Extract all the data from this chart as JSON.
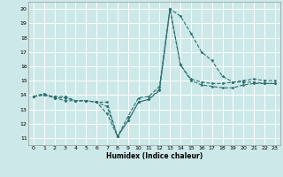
{
  "xlabel": "Humidex (Indice chaleur)",
  "bg_color": "#cce8e8",
  "grid_color": "#ffffff",
  "line_color": "#2d7070",
  "xlim": [
    -0.5,
    23.5
  ],
  "ylim": [
    10.5,
    20.5
  ],
  "yticks": [
    11,
    12,
    13,
    14,
    15,
    16,
    17,
    18,
    19,
    20
  ],
  "xticks": [
    0,
    1,
    2,
    3,
    4,
    5,
    6,
    7,
    8,
    9,
    10,
    11,
    12,
    13,
    14,
    15,
    16,
    17,
    18,
    19,
    20,
    21,
    22,
    23
  ],
  "lines": [
    [
      13.9,
      14.0,
      13.8,
      13.6,
      13.6,
      13.6,
      13.5,
      12.7,
      11.1,
      12.2,
      13.5,
      13.7,
      14.4,
      20.0,
      19.5,
      18.3,
      17.0,
      16.4,
      15.3,
      14.9,
      14.9,
      14.9,
      14.8,
      14.8
    ],
    [
      13.9,
      14.0,
      13.9,
      13.9,
      13.6,
      13.6,
      13.5,
      13.2,
      11.1,
      12.2,
      13.5,
      13.7,
      14.3,
      20.0,
      16.1,
      15.0,
      14.7,
      14.6,
      14.5,
      14.5,
      14.7,
      14.8,
      14.8,
      14.8
    ],
    [
      13.9,
      14.1,
      13.8,
      13.8,
      13.6,
      13.6,
      13.5,
      13.5,
      11.1,
      12.5,
      13.8,
      13.9,
      14.6,
      20.0,
      16.1,
      15.1,
      14.9,
      14.8,
      14.8,
      14.9,
      15.0,
      15.1,
      15.0,
      15.0
    ]
  ],
  "ylabel_ticks": [
    "11",
    "12",
    "13",
    "14",
    "15",
    "16",
    "17",
    "18",
    "19",
    "20"
  ],
  "xlabel_ticks": [
    "0",
    "1",
    "2",
    "3",
    "4",
    "5",
    "6",
    "7",
    "8",
    "9",
    "10",
    "11",
    "12",
    "13",
    "14",
    "15",
    "16",
    "17",
    "18",
    "19",
    "20",
    "21",
    "22",
    "23"
  ]
}
